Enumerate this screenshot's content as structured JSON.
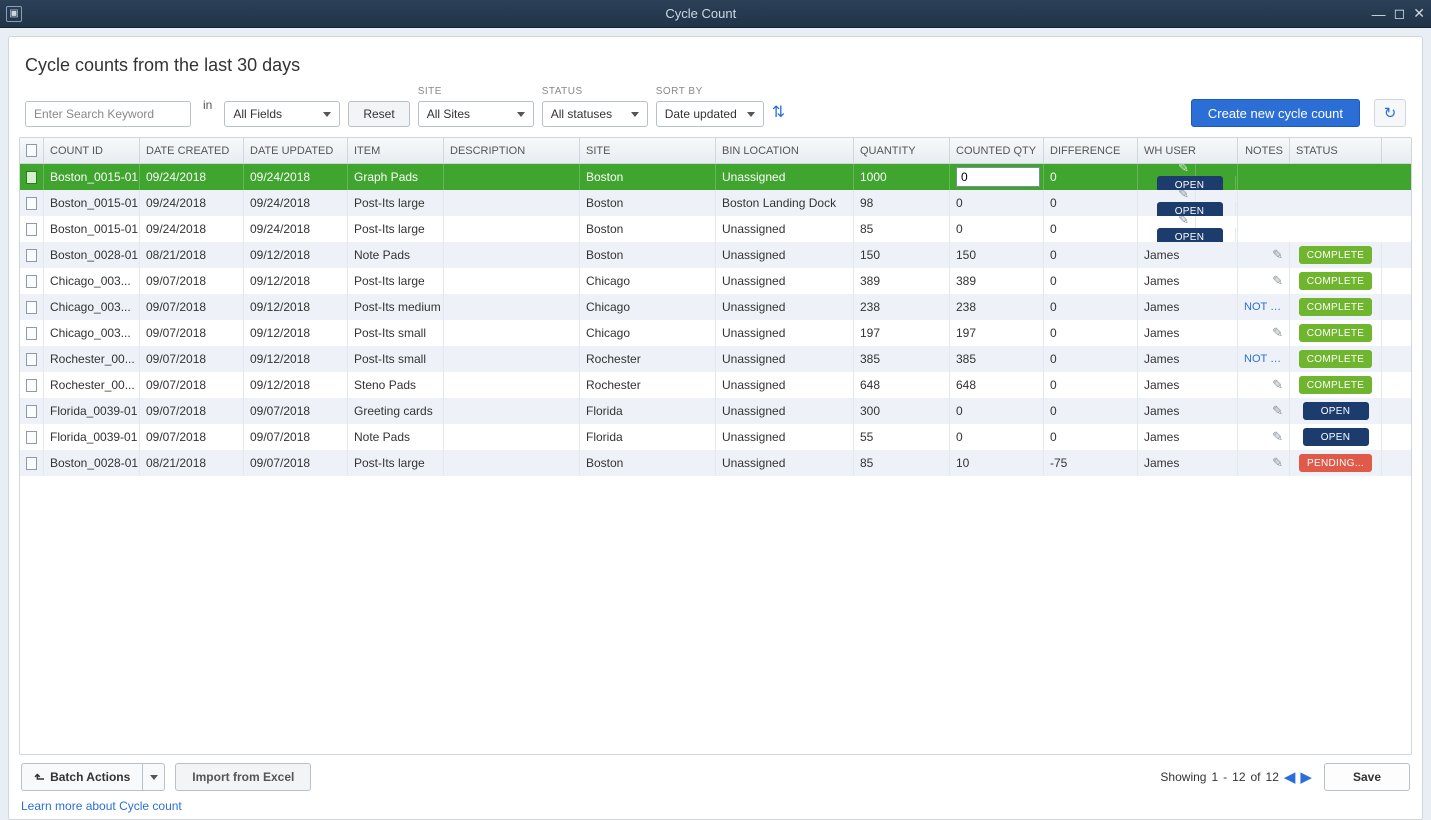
{
  "window": {
    "title": "Cycle Count"
  },
  "page_title": "Cycle counts from the last 30 days",
  "filters": {
    "search_placeholder": "Enter Search Keyword",
    "in_label": "in",
    "all_fields": "All Fields",
    "reset": "Reset",
    "site_label": "SITE",
    "site_value": "All Sites",
    "status_label": "STATUS",
    "status_value": "All statuses",
    "sort_label": "SORT BY",
    "sort_value": "Date updated"
  },
  "create_btn": "Create new cycle count",
  "columns": {
    "count_id": "COUNT ID",
    "date_created": "DATE CREATED",
    "date_updated": "DATE UPDATED",
    "item": "ITEM",
    "description": "DESCRIPTION",
    "site": "SITE",
    "bin": "BIN LOCATION",
    "qty": "QUANTITY",
    "cqty": "COUNTED QTY",
    "diff": "DIFFERENCE",
    "user": "WH USER",
    "notes": "NOTES",
    "status": "STATUS"
  },
  "rows": [
    {
      "id": "Boston_0015-01",
      "created": "09/24/2018",
      "updated": "09/24/2018",
      "item": "Graph Pads",
      "desc": "",
      "site": "Boston",
      "bin": "Unassigned",
      "qty": "1000",
      "cqty": "0",
      "diff": "0",
      "user": "<Unassigned...",
      "note": "",
      "status": "OPEN",
      "status_class": "open",
      "selected": true,
      "editing": true
    },
    {
      "id": "Boston_0015-01",
      "created": "09/24/2018",
      "updated": "09/24/2018",
      "item": "Post-Its large",
      "desc": "",
      "site": "Boston",
      "bin": "Boston Landing Dock",
      "qty": "98",
      "cqty": "0",
      "diff": "0",
      "user": "<Unassigned...",
      "note": "",
      "status": "OPEN",
      "status_class": "open"
    },
    {
      "id": "Boston_0015-01",
      "created": "09/24/2018",
      "updated": "09/24/2018",
      "item": "Post-Its large",
      "desc": "",
      "site": "Boston",
      "bin": "Unassigned",
      "qty": "85",
      "cqty": "0",
      "diff": "0",
      "user": "<Unassigned...",
      "note": "",
      "status": "OPEN",
      "status_class": "open"
    },
    {
      "id": "Boston_0028-01",
      "created": "08/21/2018",
      "updated": "09/12/2018",
      "item": "Note Pads",
      "desc": "",
      "site": "Boston",
      "bin": "Unassigned",
      "qty": "150",
      "cqty": "150",
      "diff": "0",
      "user": "James",
      "note": "",
      "status": "COMPLETE",
      "status_class": "complete"
    },
    {
      "id": "Chicago_003...",
      "created": "09/07/2018",
      "updated": "09/12/2018",
      "item": "Post-Its large",
      "desc": "",
      "site": "Chicago",
      "bin": "Unassigned",
      "qty": "389",
      "cqty": "389",
      "diff": "0",
      "user": "James",
      "note": "",
      "status": "COMPLETE",
      "status_class": "complete"
    },
    {
      "id": "Chicago_003...",
      "created": "09/07/2018",
      "updated": "09/12/2018",
      "item": "Post-Its medium",
      "desc": "",
      "site": "Chicago",
      "bin": "Unassigned",
      "qty": "238",
      "cqty": "238",
      "diff": "0",
      "user": "James",
      "note": "NOT C...",
      "status": "COMPLETE",
      "status_class": "complete"
    },
    {
      "id": "Chicago_003...",
      "created": "09/07/2018",
      "updated": "09/12/2018",
      "item": "Post-Its small",
      "desc": "",
      "site": "Chicago",
      "bin": "Unassigned",
      "qty": "197",
      "cqty": "197",
      "diff": "0",
      "user": "James",
      "note": "",
      "status": "COMPLETE",
      "status_class": "complete"
    },
    {
      "id": "Rochester_00...",
      "created": "09/07/2018",
      "updated": "09/12/2018",
      "item": "Post-Its small",
      "desc": "",
      "site": "Rochester",
      "bin": "Unassigned",
      "qty": "385",
      "cqty": "385",
      "diff": "0",
      "user": "James",
      "note": "NOT C...",
      "status": "COMPLETE",
      "status_class": "complete"
    },
    {
      "id": "Rochester_00...",
      "created": "09/07/2018",
      "updated": "09/12/2018",
      "item": "Steno Pads",
      "desc": "",
      "site": "Rochester",
      "bin": "Unassigned",
      "qty": "648",
      "cqty": "648",
      "diff": "0",
      "user": "James",
      "note": "",
      "status": "COMPLETE",
      "status_class": "complete"
    },
    {
      "id": "Florida_0039-01",
      "created": "09/07/2018",
      "updated": "09/07/2018",
      "item": "Greeting cards",
      "desc": "",
      "site": "Florida",
      "bin": "Unassigned",
      "qty": "300",
      "cqty": "0",
      "diff": "0",
      "user": "James",
      "note": "",
      "status": "OPEN",
      "status_class": "open"
    },
    {
      "id": "Florida_0039-01",
      "created": "09/07/2018",
      "updated": "09/07/2018",
      "item": "Note Pads",
      "desc": "",
      "site": "Florida",
      "bin": "Unassigned",
      "qty": "55",
      "cqty": "0",
      "diff": "0",
      "user": "James",
      "note": "",
      "status": "OPEN",
      "status_class": "open"
    },
    {
      "id": "Boston_0028-01",
      "created": "08/21/2018",
      "updated": "09/07/2018",
      "item": "Post-Its large",
      "desc": "",
      "site": "Boston",
      "bin": "Unassigned",
      "qty": "85",
      "cqty": "10",
      "diff": "-75",
      "user": "James",
      "note": "",
      "status": "PENDING...",
      "status_class": "pending"
    }
  ],
  "footer": {
    "batch": "Batch Actions",
    "import": "Import from Excel",
    "learn": "Learn more about Cycle count",
    "showing": "Showing",
    "from": "1",
    "dash": "-",
    "to": "12",
    "of_label": "of",
    "total": "12",
    "save": "Save"
  }
}
